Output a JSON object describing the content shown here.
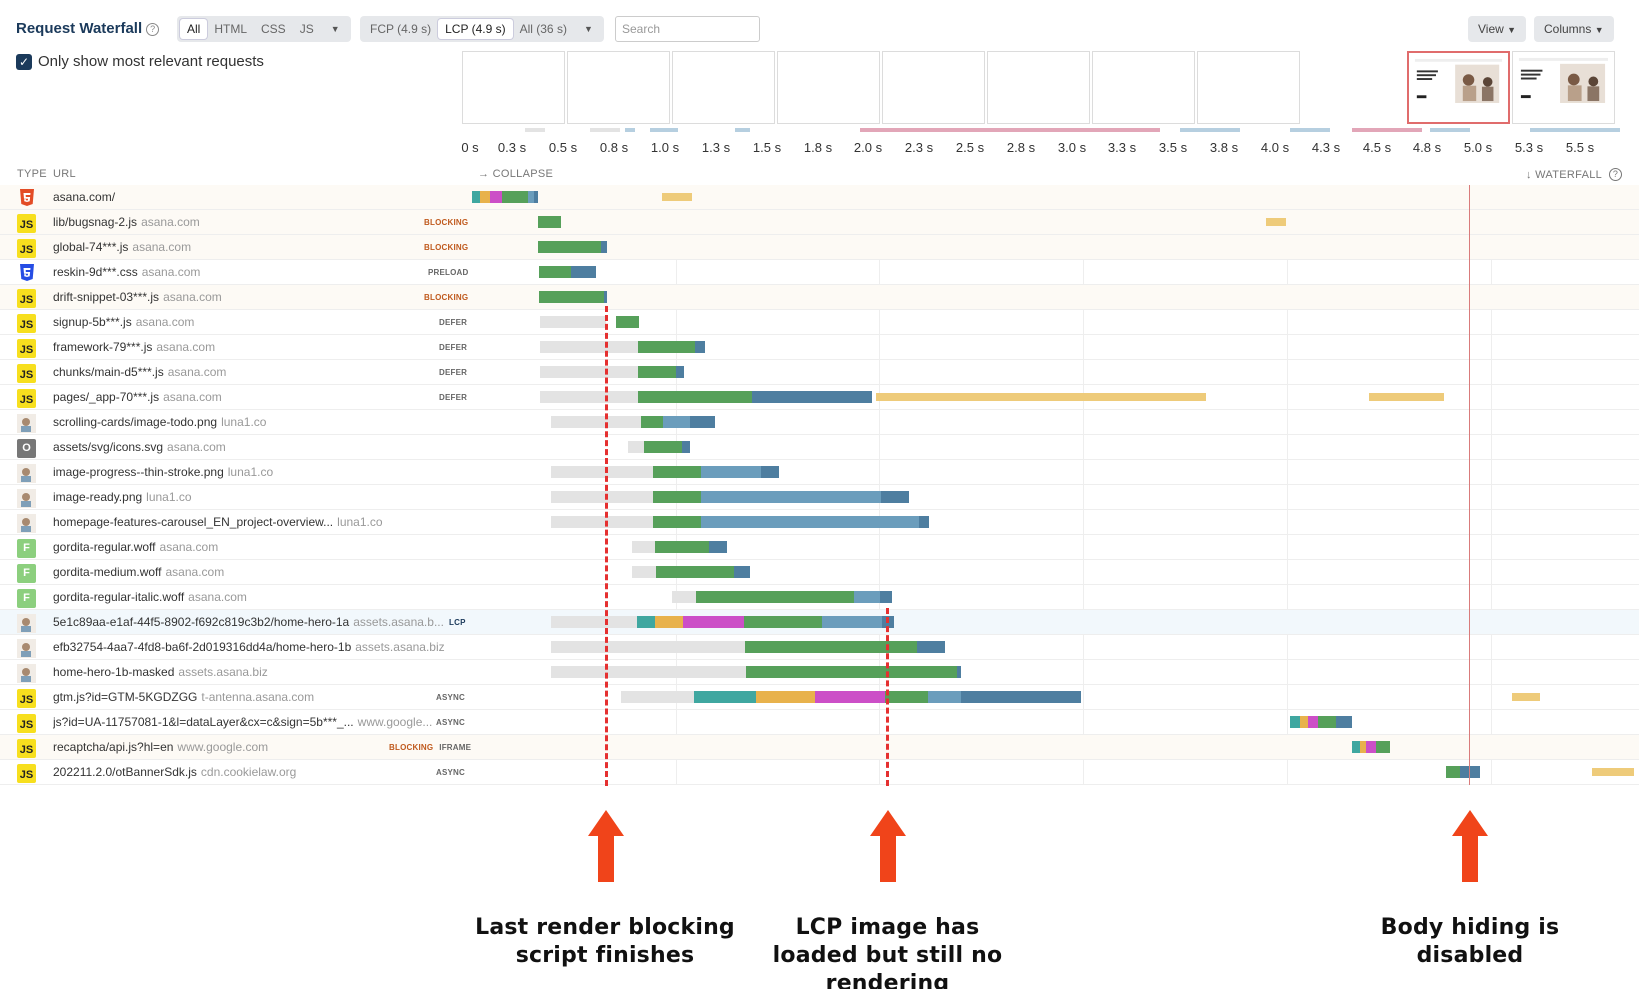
{
  "header": {
    "title": "Request Waterfall",
    "help_icon": "?",
    "type_filter": [
      "All",
      "HTML",
      "CSS",
      "JS"
    ],
    "type_active": "All",
    "range_filter": [
      "FCP (4.9 s)",
      "LCP (4.9 s)",
      "All (36 s)"
    ],
    "range_active": "LCP (4.9 s)",
    "search_placeholder": "Search",
    "view_label": "View",
    "columns_label": "Columns",
    "relevant_checkbox": "Only show most relevant requests"
  },
  "timeline": {
    "ticks": [
      "0 s",
      "0.3 s",
      "0.5 s",
      "0.8 s",
      "1.0 s",
      "1.3 s",
      "1.5 s",
      "1.8 s",
      "2.0 s",
      "2.3 s",
      "2.5 s",
      "2.8 s",
      "3.0 s",
      "3.3 s",
      "3.5 s",
      "3.8 s",
      "4.0 s",
      "4.3 s",
      "4.5 s",
      "4.8 s",
      "5.0 s",
      "5.3 s",
      "5.5 s"
    ]
  },
  "columns": {
    "type": "TYPE",
    "url": "URL",
    "collapse": "→ COLLAPSE",
    "waterfall": "↓ WATERFALL"
  },
  "colors": {
    "wait": "#e3e3e3",
    "dns": "#3fa7a0",
    "connect": "#e8b24c",
    "ssl": "#cc4fc7",
    "ttfb": "#56a05a",
    "download": "#6b9dbc",
    "download_dark": "#4e7ea0",
    "cpu": "#eecb7a",
    "marker": "#e53030"
  },
  "requests": [
    {
      "type": "html",
      "url": "asana.com/",
      "domain": "",
      "tag": "",
      "row": "blocking"
    },
    {
      "type": "js",
      "url": "lib/bugsnag-2.js",
      "domain": "asana.com",
      "tag": "BLOCKING",
      "row": "blocking"
    },
    {
      "type": "js",
      "url": "global-74***.js",
      "domain": "asana.com",
      "tag": "BLOCKING",
      "row": "blocking"
    },
    {
      "type": "css",
      "url": "reskin-9d***.css",
      "domain": "asana.com",
      "tag": "PRELOAD",
      "row": ""
    },
    {
      "type": "js",
      "url": "drift-snippet-03***.js",
      "domain": "asana.com",
      "tag": "BLOCKING",
      "row": "blocking"
    },
    {
      "type": "js",
      "url": "signup-5b***.js",
      "domain": "asana.com",
      "tag": "DEFER",
      "row": ""
    },
    {
      "type": "js",
      "url": "framework-79***.js",
      "domain": "asana.com",
      "tag": "DEFER",
      "row": ""
    },
    {
      "type": "js",
      "url": "chunks/main-d5***.js",
      "domain": "asana.com",
      "tag": "DEFER",
      "row": ""
    },
    {
      "type": "js",
      "url": "pages/_app-70***.js",
      "domain": "asana.com",
      "tag": "DEFER",
      "row": ""
    },
    {
      "type": "img",
      "url": "scrolling-cards/image-todo.png",
      "domain": "luna1.co",
      "tag": "",
      "row": ""
    },
    {
      "type": "other",
      "url": "assets/svg/icons.svg",
      "domain": "asana.com",
      "tag": "",
      "row": ""
    },
    {
      "type": "img",
      "url": "image-progress--thin-stroke.png",
      "domain": "luna1.co",
      "tag": "",
      "row": ""
    },
    {
      "type": "img",
      "url": "image-ready.png",
      "domain": "luna1.co",
      "tag": "",
      "row": ""
    },
    {
      "type": "img",
      "url": "homepage-features-carousel_EN_project-overview...",
      "domain": "luna1.co",
      "tag": "",
      "row": ""
    },
    {
      "type": "font",
      "url": "gordita-regular.woff",
      "domain": "asana.com",
      "tag": "",
      "row": ""
    },
    {
      "type": "font",
      "url": "gordita-medium.woff",
      "domain": "asana.com",
      "tag": "",
      "row": ""
    },
    {
      "type": "font",
      "url": "gordita-regular-italic.woff",
      "domain": "asana.com",
      "tag": "",
      "row": ""
    },
    {
      "type": "img",
      "url": "5e1c89aa-e1af-44f5-8902-f692c819c3b2/home-hero-1a",
      "domain": "assets.asana.b...",
      "tag": "LCP",
      "row": "lcp"
    },
    {
      "type": "img",
      "url": "efb32754-4aa7-4fd8-ba6f-2d019316dd4a/home-hero-1b",
      "domain": "assets.asana.biz",
      "tag": "",
      "row": ""
    },
    {
      "type": "img",
      "url": "home-hero-1b-masked",
      "domain": "assets.asana.biz",
      "tag": "",
      "row": ""
    },
    {
      "type": "js",
      "url": "gtm.js?id=GTM-5KGDZGG",
      "domain": "t-antenna.asana.com",
      "tag": "ASYNC",
      "row": ""
    },
    {
      "type": "js",
      "url": "js?id=UA-11757081-1&l=dataLayer&cx=c&sign=5b***_...",
      "domain": "www.google...",
      "tag": "ASYNC",
      "row": ""
    },
    {
      "type": "js",
      "url": "recaptcha/api.js?hl=en",
      "domain": "www.google.com",
      "tag": "BLOCKING IFRAME",
      "row": "blocking"
    },
    {
      "type": "js",
      "url": "202211.2.0/otBannerSdk.js",
      "domain": "cdn.cookielaw.org",
      "tag": "ASYNC",
      "row": ""
    }
  ],
  "annotations": {
    "render_blocking": "Last render blocking script finishes",
    "lcp_loaded": "LCP image has loaded but still no rendering",
    "body_hiding": "Body hiding is disabled"
  }
}
